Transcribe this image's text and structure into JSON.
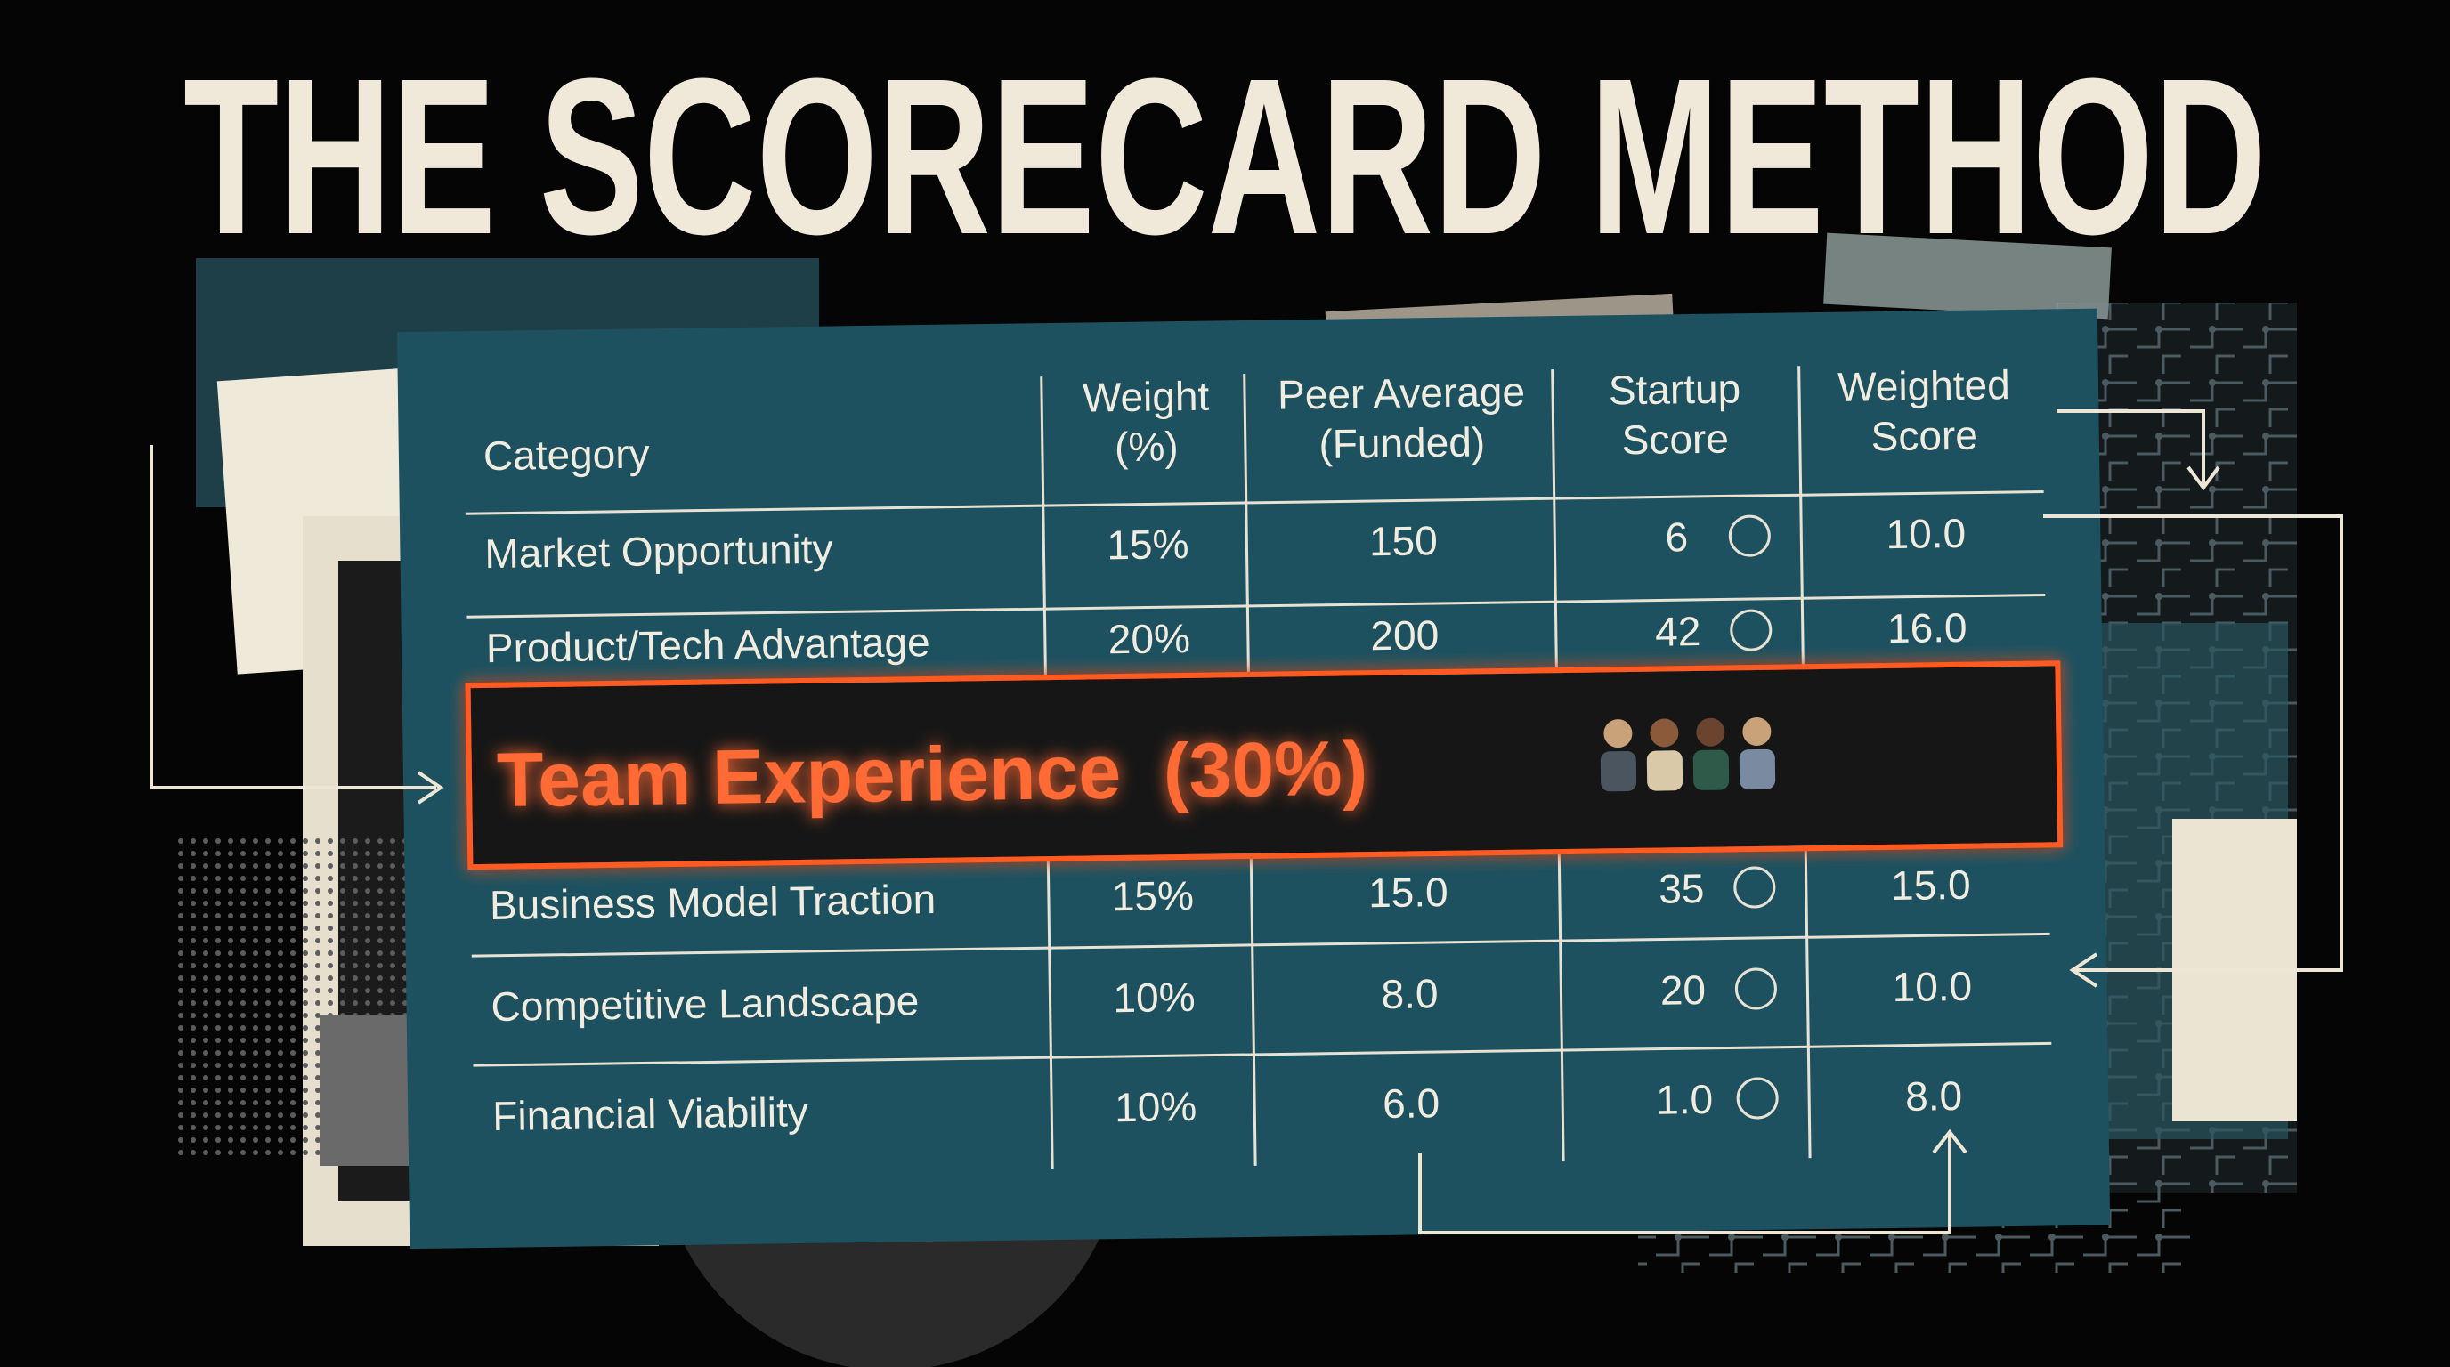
{
  "title": "THE SCORECARD METHOD",
  "table": {
    "header": [
      [
        "Category"
      ],
      [
        "Weight",
        "(%)"
      ],
      [
        "Peer Average",
        "(Funded)"
      ],
      [
        "Startup",
        "Score"
      ],
      [
        "Weighted",
        "Score"
      ]
    ],
    "rows": [
      [
        "Market Opportunity",
        "15%",
        "150",
        "6",
        "10.0"
      ],
      [
        "Product/Tech Advantage",
        "20%",
        "200",
        "42",
        "16.0"
      ],
      [
        "Business Model Traction",
        "15%",
        "15.0",
        "35",
        "15.0"
      ],
      [
        "Competitive Landscape",
        "10%",
        "8.0",
        "20",
        "10.0"
      ],
      [
        "Financial Viability",
        "10%",
        "6.0",
        "1.0",
        "8.0"
      ]
    ],
    "highlight": "Team Experience  (30%)"
  }
}
